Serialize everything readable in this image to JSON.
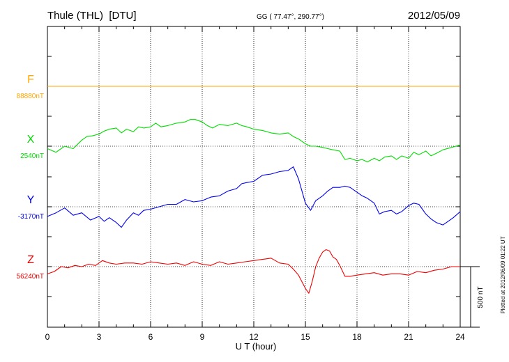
{
  "header": {
    "station": "Thule (THL)  [DTU]",
    "coords": "GG ( 77.47°, 290.77°)",
    "date": "2012/05/09"
  },
  "footer": {
    "plotted": "Plotted at 2012/06/09 01:22 UT"
  },
  "chart_data": {
    "type": "line",
    "title": "Thule (THL)  [DTU]",
    "xlabel": "U T (hour)",
    "xlim": [
      0,
      24
    ],
    "xticks": [
      0,
      3,
      6,
      9,
      12,
      15,
      18,
      21,
      24
    ],
    "grid": true,
    "scale_bar": {
      "label": "500 nT",
      "value": 500,
      "unit": "nT"
    },
    "series": [
      {
        "name": "F",
        "baseline_label": "88880nT",
        "baseline": 88880,
        "color": "#ffa500",
        "x": [
          0,
          24
        ],
        "y": [
          88880,
          88880
        ]
      },
      {
        "name": "X",
        "baseline_label": "2540nT",
        "baseline": 2540,
        "color": "#00dd00",
        "x": [
          0,
          0.5,
          1,
          1.5,
          2,
          2.3,
          2.6,
          3,
          3.3,
          3.6,
          4,
          4.3,
          4.6,
          5,
          5.3,
          5.6,
          6,
          6.3,
          6.6,
          7,
          7.5,
          8,
          8.3,
          8.6,
          9,
          9.3,
          9.6,
          10,
          10.5,
          11,
          11.3,
          11.6,
          12,
          12.5,
          13,
          13.5,
          14,
          14.3,
          14.6,
          15,
          15.3,
          15.6,
          16,
          16.3,
          16.6,
          17,
          17.3,
          17.6,
          18,
          18.3,
          18.6,
          19,
          19.3,
          19.6,
          20,
          20.3,
          20.6,
          21,
          21.3,
          21.6,
          22,
          22.3,
          22.6,
          23,
          23.5,
          24
        ],
        "y": [
          2520,
          2490,
          2540,
          2520,
          2590,
          2620,
          2625,
          2640,
          2665,
          2680,
          2690,
          2650,
          2680,
          2660,
          2700,
          2690,
          2700,
          2730,
          2700,
          2710,
          2730,
          2740,
          2760,
          2760,
          2740,
          2710,
          2690,
          2720,
          2710,
          2730,
          2710,
          2700,
          2680,
          2670,
          2650,
          2640,
          2650,
          2620,
          2600,
          2560,
          2540,
          2540,
          2530,
          2520,
          2510,
          2500,
          2430,
          2440,
          2420,
          2430,
          2410,
          2440,
          2420,
          2450,
          2460,
          2430,
          2460,
          2440,
          2490,
          2470,
          2500,
          2460,
          2480,
          2510,
          2530,
          2550
        ]
      },
      {
        "name": "Y",
        "baseline_label": "-3170nT",
        "baseline": -3170,
        "color": "#0000ee",
        "x": [
          0,
          0.5,
          1,
          1.5,
          2,
          2.5,
          3,
          3.3,
          3.6,
          4,
          4.3,
          4.6,
          5,
          5.3,
          5.6,
          6,
          6.5,
          7,
          7.5,
          8,
          8.5,
          9,
          9.5,
          10,
          10.5,
          11,
          11.3,
          11.6,
          12,
          12.5,
          13,
          13.5,
          14,
          14.3,
          14.6,
          15,
          15.3,
          15.6,
          16,
          16.3,
          16.6,
          17,
          17.3,
          17.6,
          18,
          18.3,
          18.6,
          19,
          19.3,
          19.6,
          20,
          20.3,
          20.6,
          21,
          21.3,
          21.6,
          22,
          22.3,
          22.6,
          23,
          23.3,
          23.6,
          24
        ],
        "y": [
          -3250,
          -3220,
          -3180,
          -3240,
          -3220,
          -3280,
          -3250,
          -3290,
          -3260,
          -3300,
          -3340,
          -3280,
          -3220,
          -3240,
          -3200,
          -3190,
          -3170,
          -3150,
          -3150,
          -3110,
          -3130,
          -3120,
          -3090,
          -3080,
          -3040,
          -3020,
          -2980,
          -2970,
          -2960,
          -2910,
          -2900,
          -2880,
          -2870,
          -2840,
          -2940,
          -3140,
          -3200,
          -3120,
          -3080,
          -3040,
          -3010,
          -3010,
          -3000,
          -3010,
          -3050,
          -3080,
          -3100,
          -3140,
          -3230,
          -3210,
          -3200,
          -3230,
          -3210,
          -3160,
          -3140,
          -3150,
          -3230,
          -3270,
          -3300,
          -3320,
          -3290,
          -3260,
          -3210
        ]
      },
      {
        "name": "Z",
        "baseline_label": "56240nT",
        "baseline": 56240,
        "color": "#ee0000",
        "x": [
          0,
          0.4,
          0.8,
          1.2,
          1.6,
          2,
          2.4,
          2.8,
          3.2,
          3.6,
          4,
          4.5,
          5,
          5.5,
          6,
          6.5,
          7,
          7.5,
          8,
          8.5,
          9,
          9.5,
          10,
          10.5,
          11,
          11.5,
          12,
          12.5,
          13,
          13.5,
          14,
          14.3,
          14.6,
          15,
          15.2,
          15.4,
          15.6,
          15.8,
          16,
          16.2,
          16.4,
          16.6,
          16.8,
          17,
          17.3,
          17.6,
          18,
          18.5,
          19,
          19.5,
          20,
          20.5,
          21,
          21.5,
          22,
          22.5,
          23,
          23.5,
          24
        ],
        "y": [
          56180,
          56200,
          56240,
          56230,
          56250,
          56240,
          56260,
          56250,
          56290,
          56270,
          56260,
          56270,
          56270,
          56260,
          56280,
          56270,
          56260,
          56270,
          56250,
          56280,
          56260,
          56250,
          56280,
          56260,
          56270,
          56280,
          56290,
          56300,
          56310,
          56270,
          56260,
          56220,
          56170,
          56060,
          56020,
          56120,
          56240,
          56310,
          56360,
          56380,
          56370,
          56320,
          56300,
          56250,
          56160,
          56160,
          56170,
          56180,
          56190,
          56170,
          56180,
          56180,
          56170,
          56200,
          56190,
          56210,
          56220,
          56240,
          56240
        ]
      }
    ]
  }
}
